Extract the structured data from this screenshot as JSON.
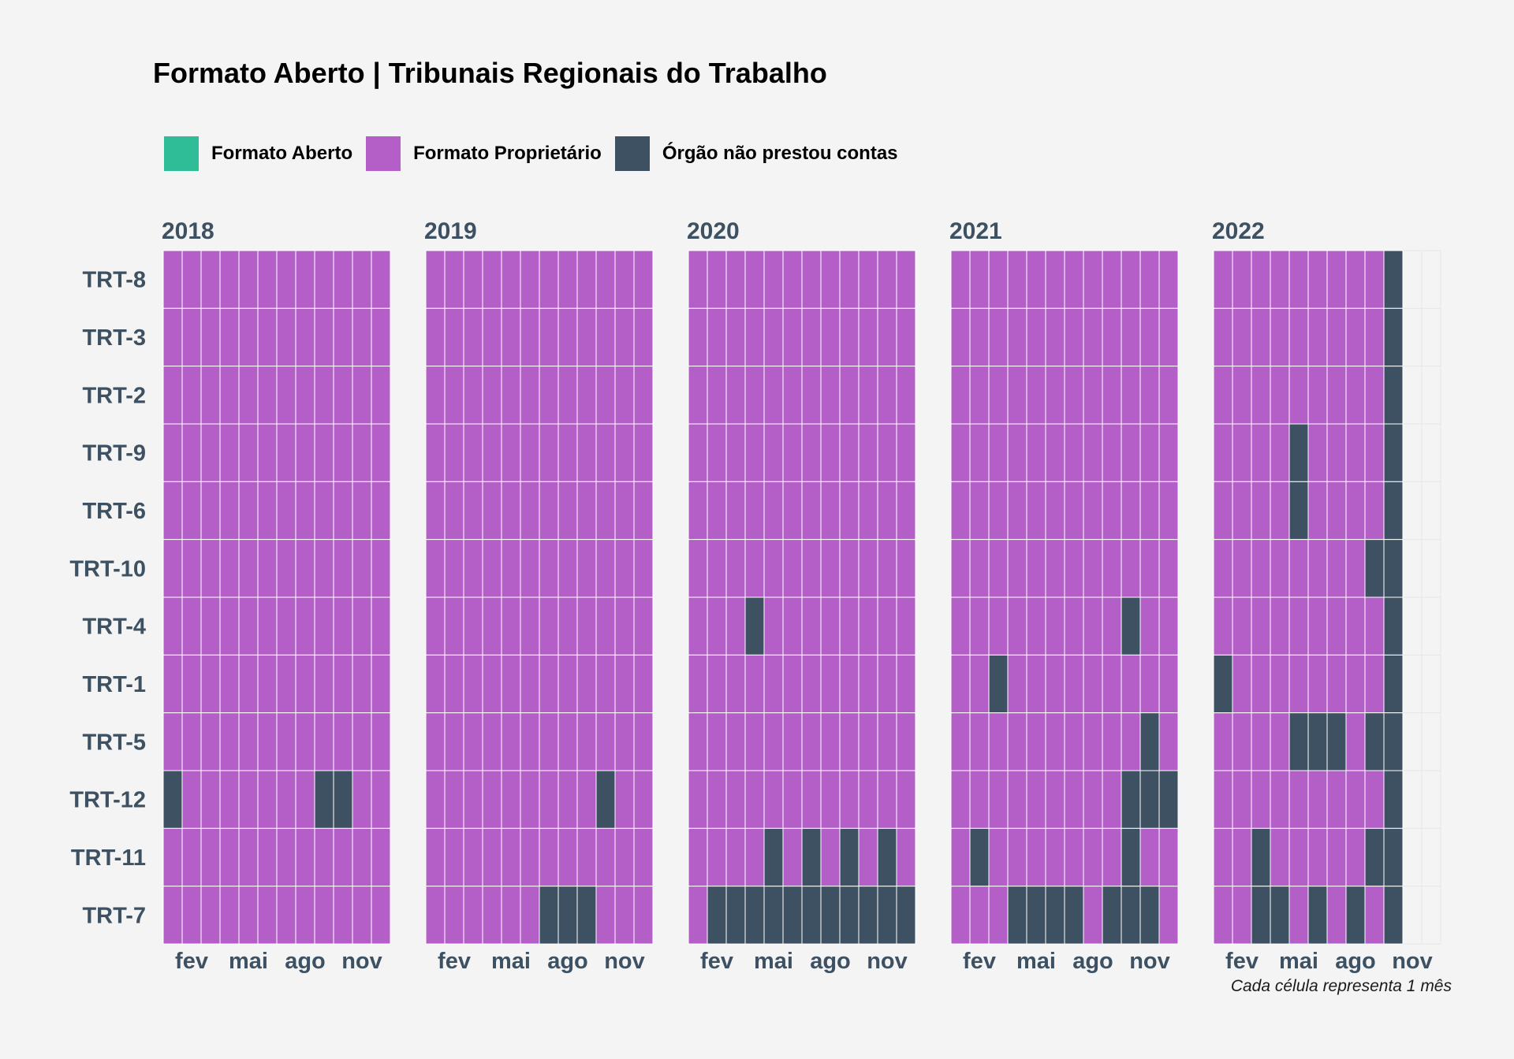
{
  "title": "Formato Aberto | Tribunais Regionais do Trabalho",
  "caption": "Cada célula representa 1 mês",
  "colors": {
    "aberto": "#2ebd96",
    "proprietario": "#b45fc7",
    "nao_prestou": "#3d5162",
    "text": "#3d5162"
  },
  "legend": [
    {
      "label": "Formato Aberto",
      "key": "aberto"
    },
    {
      "label": "Formato Proprietário",
      "key": "proprietario"
    },
    {
      "label": "Órgão não prestou contas",
      "key": "nao_prestou"
    }
  ],
  "chart_data": {
    "type": "heatmap",
    "facets": [
      "2018",
      "2019",
      "2020",
      "2021",
      "2022"
    ],
    "rows": [
      "TRT-8",
      "TRT-3",
      "TRT-2",
      "TRT-9",
      "TRT-6",
      "TRT-10",
      "TRT-4",
      "TRT-1",
      "TRT-5",
      "TRT-12",
      "TRT-11",
      "TRT-7"
    ],
    "x_ticks": [
      {
        "month": 2,
        "label": "fev"
      },
      {
        "month": 5,
        "label": "mai"
      },
      {
        "month": 8,
        "label": "ago"
      },
      {
        "month": 11,
        "label": "nov"
      }
    ],
    "status_codes": {
      "P": "proprietario",
      "N": "nao_prestou",
      "A": "aberto",
      "-": "sem dados"
    },
    "grid": {
      "2018": [
        "PPPPPPPPPPPP",
        "PPPPPPPPPPPP",
        "PPPPPPPPPPPP",
        "PPPPPPPPPPPP",
        "PPPPPPPPPPPP",
        "PPPPPPPPPPPP",
        "PPPPPPPPPPPP",
        "PPPPPPPPPPPP",
        "PPPPPPPPPPPP",
        "NPPPPPPPNNPP",
        "PPPPPPPPPPPP",
        "PPPPPPPPPPPP"
      ],
      "2019": [
        "PPPPPPPPPPPP",
        "PPPPPPPPPPPP",
        "PPPPPPPPPPPP",
        "PPPPPPPPPPPP",
        "PPPPPPPPPPPP",
        "PPPPPPPPPPPP",
        "PPPPPPPPPPPP",
        "PPPPPPPPPPPP",
        "PPPPPPPPPPPP",
        "PPPPPPPPPNPP",
        "PPPPPPPPPPPP",
        "PPPPPPNNNPPP"
      ],
      "2020": [
        "PPPPPPPPPPPP",
        "PPPPPPPPPPPP",
        "PPPPPPPPPPPP",
        "PPPPPPPPPPPP",
        "PPPPPPPPPPPP",
        "PPPPPPPPPPPP",
        "PPPNPPPPPPPP",
        "PPPPPPPPPPPP",
        "PPPPPPPPPPPP",
        "PPPPPPPPPPPP",
        "PPPPNPNPNPNP",
        "PNNNNNNNNNNN"
      ],
      "2021": [
        "PPPPPPPPPPPP",
        "PPPPPPPPPPPP",
        "PPPPPPPPPPPP",
        "PPPPPPPPPPPP",
        "PPPPPPPPPPPP",
        "PPPPPPPPPPPP",
        "PPPPPPPPPNPP",
        "PPNPPPPPPPPP",
        "PPPPPPPPPPNP",
        "PPPPPPPPPNNN",
        "PNPPPPPPPNPP",
        "PPPNNNNPNNNP"
      ],
      "2022": [
        "PPPPPPPPPN--",
        "PPPPPPPPPN--",
        "PPPPPPPPPN--",
        "PPPPNPPPPN--",
        "PPPPNPPPPN--",
        "PPPPPPPPNN--",
        "PPPPPPPPPN--",
        "NPPPPPPPPN--",
        "PPPPNNNPNN--",
        "PPPPPPPPPN--",
        "PPNPPPPPNN--",
        "PPNNPNPNPN--"
      ]
    }
  }
}
